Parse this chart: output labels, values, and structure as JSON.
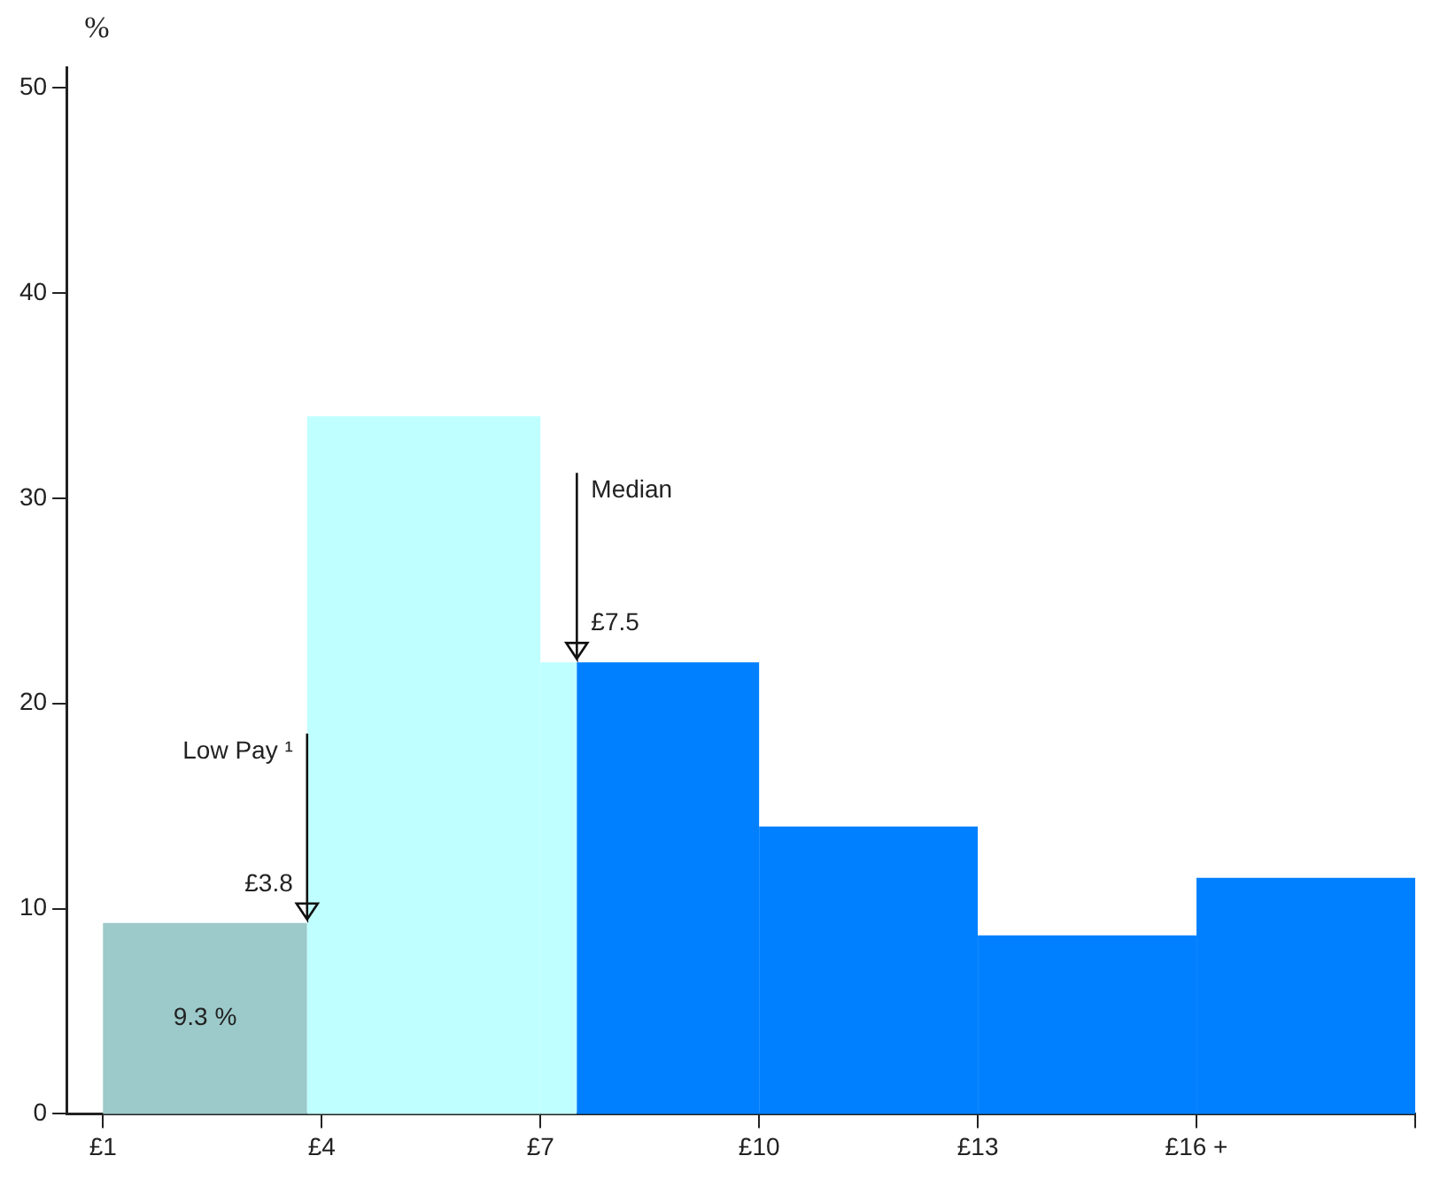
{
  "chart_data": {
    "type": "histogram",
    "ylabel": "%",
    "bins": [
      1,
      3.8,
      7,
      7.5,
      10,
      13,
      16,
      19
    ],
    "values": [
      9.3,
      34,
      22,
      22,
      14,
      8.7,
      11.5
    ],
    "colors": [
      "#9cc9c9",
      "#c0ffff",
      "#c0ffff",
      "#0080ff",
      "#0080ff",
      "#0080ff",
      "#0080ff"
    ],
    "value_labels": [
      "9.3 %",
      null,
      null,
      null,
      null,
      null,
      null
    ],
    "xlim": [
      0.5,
      19
    ],
    "ylim": [
      0,
      51
    ],
    "xticks": [
      {
        "value": 1,
        "label": "£1"
      },
      {
        "value": 4,
        "label": "£4"
      },
      {
        "value": 7,
        "label": "£7"
      },
      {
        "value": 10,
        "label": "£10"
      },
      {
        "value": 13,
        "label": "£13"
      },
      {
        "value": 16,
        "label": "£16 +"
      },
      {
        "value": 19,
        "label": null
      }
    ],
    "yticks": [
      0,
      10,
      20,
      30,
      40,
      50
    ],
    "grid": false,
    "legend": false,
    "ref_lines": [
      {
        "axis": "x",
        "value": 3.8,
        "label": "Low Pay ¹"
      },
      {
        "axis": "x",
        "value": 7.5,
        "label": "Median"
      }
    ],
    "annotations": [
      {
        "text": "£3.8",
        "x": 3.8,
        "y": 9.3
      },
      {
        "text": "£7.5",
        "x": 7.5,
        "y": 22
      }
    ]
  }
}
